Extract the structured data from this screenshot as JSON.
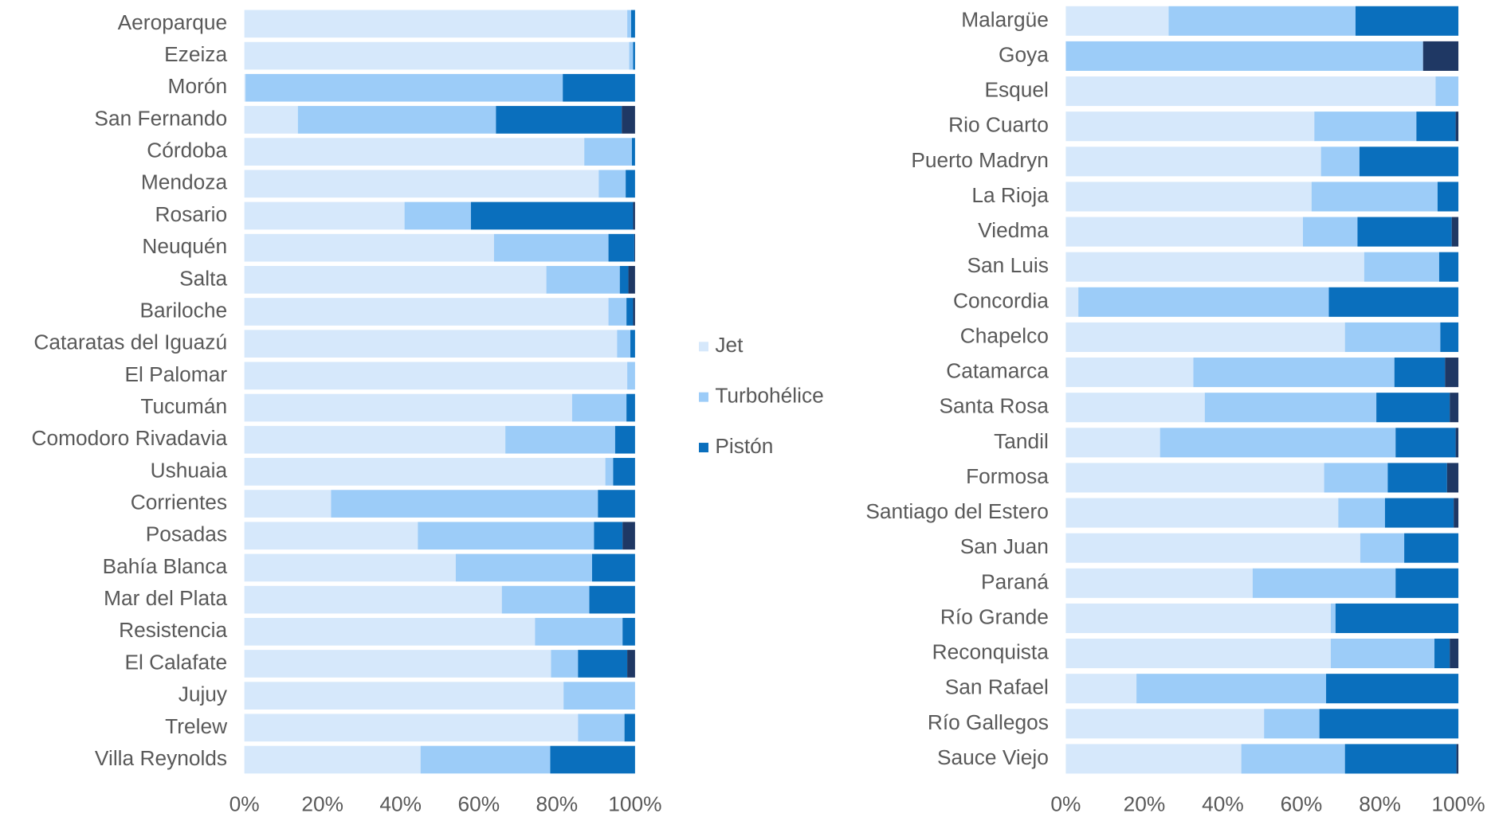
{
  "chart_data": [
    {
      "type": "bar",
      "orientation": "horizontal",
      "stacked": true,
      "legend": "right",
      "categories": [
        "Aeroparque",
        "Ezeiza",
        "Morón",
        "San Fernando",
        "Córdoba",
        "Mendoza",
        "Rosario",
        "Neuquén",
        "Salta",
        "Bariloche",
        "Cataratas del Iguazú",
        "El Palomar",
        "Tucumán",
        "Comodoro Rivadavia",
        "Ushuaia",
        "Corrientes",
        "Posadas",
        "Bahía Blanca",
        "Mar del Plata",
        "Resistencia",
        "El Calafate",
        "Jujuy",
        "Trelew",
        "Villa Reynolds"
      ],
      "series": [
        {
          "name": "Jet",
          "color": "#d6e8fb",
          "values": [
            98,
            98.5,
            0.3,
            13.7,
            87,
            90.7,
            41,
            63.9,
            77.3,
            93.2,
            95.4,
            98,
            83.9,
            66.8,
            92.4,
            22.2,
            44.4,
            54.1,
            65.9,
            74.4,
            78.5,
            81.7,
            85.4,
            45.1
          ]
        },
        {
          "name": "Turbohélice",
          "color": "#9cccf8",
          "values": [
            1,
            1,
            81.2,
            50.7,
            12.2,
            6.9,
            17,
            29.3,
            18.8,
            4.6,
            3.4,
            2,
            13.9,
            28.1,
            2,
            68.3,
            45.1,
            34.9,
            22.4,
            22.4,
            6.9,
            18.3,
            11.9,
            33.2
          ]
        },
        {
          "name": "Pistón",
          "color": "#0a6fbd",
          "values": [
            1,
            0.5,
            18.5,
            32.2,
            0.8,
            2.4,
            41.5,
            6.6,
            2.2,
            1.7,
            1.2,
            0,
            2.2,
            5.1,
            5.6,
            9.5,
            7.3,
            11,
            11.7,
            3.2,
            12.6,
            0,
            2.7,
            21.7
          ]
        },
        {
          "color": "#1f3864",
          "values": [
            0,
            0,
            0,
            3.4,
            0,
            0,
            0.5,
            0.2,
            1.7,
            0.5,
            0,
            0,
            0,
            0,
            0,
            0,
            3.2,
            0,
            0,
            0,
            2,
            0,
            0,
            0
          ]
        }
      ],
      "xlim": [
        0,
        100
      ],
      "xticks": [
        {
          "value": 0,
          "label": "0%"
        },
        {
          "value": 20,
          "label": "20%"
        },
        {
          "value": 40,
          "label": "40%"
        },
        {
          "value": 60,
          "label": "60%"
        },
        {
          "value": 80,
          "label": "80%"
        },
        {
          "value": 100,
          "label": "100%"
        }
      ]
    },
    {
      "type": "bar",
      "orientation": "horizontal",
      "stacked": true,
      "categories": [
        "Malargüe",
        "Goya",
        "Esquel",
        "Rio Cuarto",
        "Puerto Madryn",
        "La Rioja",
        "Viedma",
        "San Luis",
        "Concordia",
        "Chapelco",
        "Catamarca",
        "Santa Rosa",
        "Tandil",
        "Formosa",
        "Santiago del Estero",
        "San Juan",
        "Paraná",
        "Río Grande",
        "Reconquista",
        "San Rafael",
        "Río Gallegos",
        "Sauce Viejo"
      ],
      "series": [
        {
          "color": "#d6e8fb",
          "values": [
            26.2,
            0,
            94.2,
            63.3,
            65,
            62.6,
            60.4,
            76,
            3.2,
            71.1,
            32.5,
            35.4,
            24,
            65.8,
            69.4,
            75,
            47.6,
            67.5,
            67.5,
            18,
            50.5,
            44.7
          ]
        },
        {
          "color": "#9cccf8",
          "values": [
            47.6,
            91,
            5.8,
            26,
            9.8,
            32.1,
            13.9,
            19.1,
            63.8,
            24.3,
            51.2,
            43.7,
            60,
            16.2,
            11.9,
            11.2,
            36.4,
            1.2,
            26.4,
            48.3,
            14.1,
            26.4
          ]
        },
        {
          "color": "#0a6fbd",
          "values": [
            26.2,
            0,
            0,
            10,
            25.2,
            5.3,
            24,
            4.9,
            33,
            4.6,
            12.9,
            18.7,
            15.3,
            15.1,
            17.5,
            13.8,
            16,
            31.3,
            3.9,
            33.7,
            35.4,
            28.4
          ]
        },
        {
          "color": "#1f3864",
          "values": [
            0,
            9,
            0,
            0.7,
            0,
            0,
            1.7,
            0,
            0,
            0,
            3.4,
            2.2,
            0.7,
            2.9,
            1.2,
            0,
            0,
            0,
            2.2,
            0,
            0,
            0.5
          ]
        }
      ],
      "xlim": [
        0,
        100
      ],
      "xticks": [
        {
          "value": 0,
          "label": "0%"
        },
        {
          "value": 20,
          "label": "20%"
        },
        {
          "value": 40,
          "label": "40%"
        },
        {
          "value": 60,
          "label": "60%"
        },
        {
          "value": 80,
          "label": "80%"
        },
        {
          "value": 100,
          "label": "100%"
        }
      ]
    }
  ]
}
